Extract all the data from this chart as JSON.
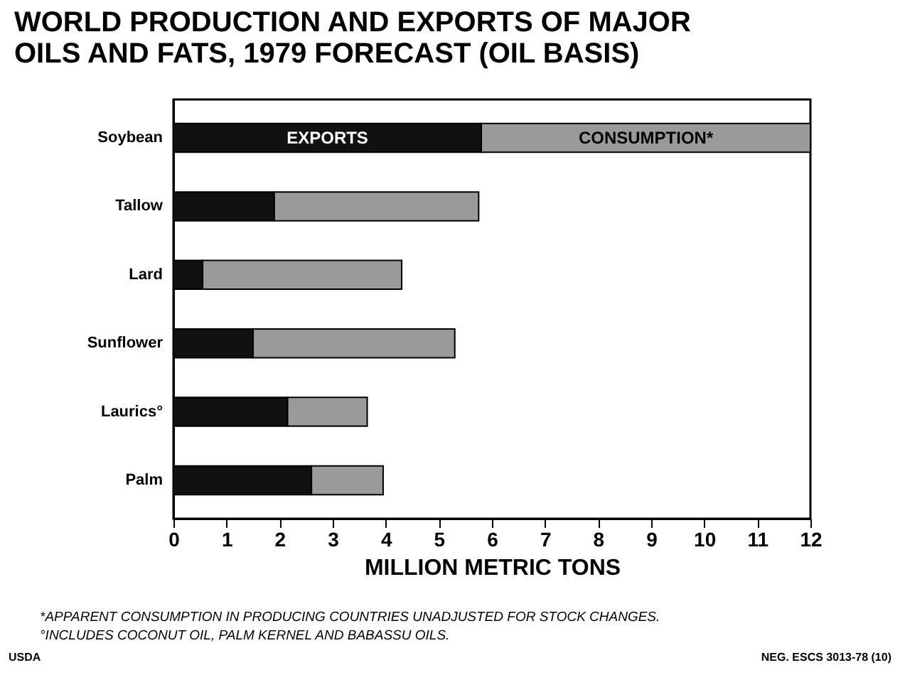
{
  "chart_data": {
    "type": "bar",
    "orientation": "horizontal",
    "stacked": true,
    "title": "WORLD PRODUCTION AND EXPORTS OF MAJOR OILS AND FATS, 1979 FORECAST (OIL BASIS)",
    "xlabel": "MILLION METRIC TONS",
    "categories": [
      "Soybean",
      "Tallow",
      "Lard",
      "Sunflower",
      "Laurics°",
      "Palm"
    ],
    "series": [
      {
        "name": "EXPORTS",
        "color": "#111111",
        "values": [
          5.8,
          1.9,
          0.55,
          1.5,
          2.15,
          2.6
        ]
      },
      {
        "name": "CONSUMPTION*",
        "color": "#9a9a9a",
        "values": [
          6.2,
          3.85,
          3.75,
          3.8,
          1.5,
          1.35
        ]
      }
    ],
    "xlim": [
      0,
      12
    ],
    "xticks": [
      0,
      1,
      2,
      3,
      4,
      5,
      6,
      7,
      8,
      9,
      10,
      11,
      12
    ],
    "grid": false,
    "legend": false,
    "annotations": [
      "*APPARENT CONSUMPTION IN PRODUCING COUNTRIES UNADJUSTED FOR STOCK CHANGES.",
      "°INCLUDES COCONUT OIL, PALM KERNEL AND BABASSU OILS.",
      "USDA",
      "NEG. ESCS 3013-78 (10)"
    ]
  }
}
